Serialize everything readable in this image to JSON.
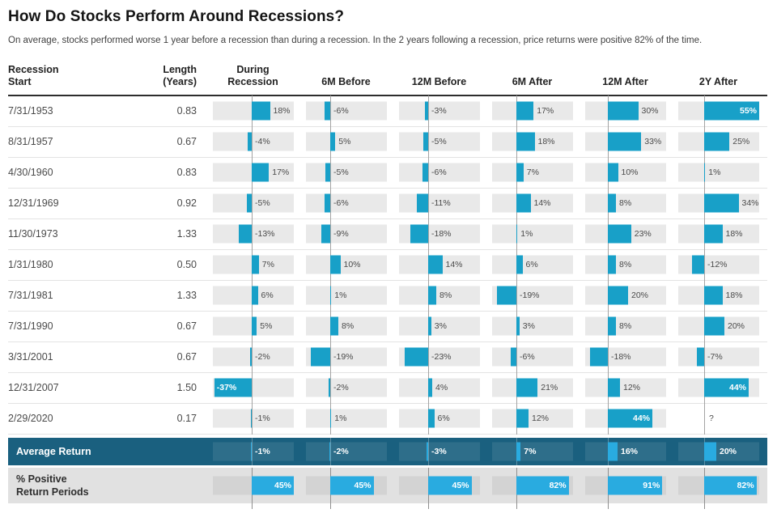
{
  "colors": {
    "bar_blue": "#18a0c8",
    "bar_bright_blue": "#29abe0",
    "dark_row_bg": "#1a607f",
    "gray_row_bg": "#e1e1e1",
    "track_gray": "#e9e9e9",
    "zero_line_gray": "#a3a3a3",
    "header_rule": "#2d2d2d"
  },
  "chart_data": {
    "type": "table",
    "title": "How Do Stocks Perform Around Recessions?",
    "subtitle": "On average, stocks performed worse 1 year before a recession than during a recession. In the 2 years following a recession, price returns were positive 82% of the time.",
    "columns": [
      "Recession\nStart",
      "Length\n(Years)",
      "During\nRecession",
      "6M Before",
      "12M Before",
      "6M After",
      "12M After",
      "2Y After"
    ],
    "bar_keys": [
      "during",
      "m6_before",
      "m12_before",
      "m6_after",
      "m12_after",
      "y2_after"
    ],
    "rows": [
      {
        "recession_start": "7/31/1953",
        "length_years": "0.83",
        "during": 18,
        "m6_before": -6,
        "m12_before": -3,
        "m6_after": 17,
        "m12_after": 30,
        "y2_after": 55
      },
      {
        "recession_start": "8/31/1957",
        "length_years": "0.67",
        "during": -4,
        "m6_before": 5,
        "m12_before": -5,
        "m6_after": 18,
        "m12_after": 33,
        "y2_after": 25
      },
      {
        "recession_start": "4/30/1960",
        "length_years": "0.83",
        "during": 17,
        "m6_before": -5,
        "m12_before": -6,
        "m6_after": 7,
        "m12_after": 10,
        "y2_after": 1
      },
      {
        "recession_start": "12/31/1969",
        "length_years": "0.92",
        "during": -5,
        "m6_before": -6,
        "m12_before": -11,
        "m6_after": 14,
        "m12_after": 8,
        "y2_after": 34
      },
      {
        "recession_start": "11/30/1973",
        "length_years": "1.33",
        "during": -13,
        "m6_before": -9,
        "m12_before": -18,
        "m6_after": 1,
        "m12_after": 23,
        "y2_after": 18
      },
      {
        "recession_start": "1/31/1980",
        "length_years": "0.50",
        "during": 7,
        "m6_before": 10,
        "m12_before": 14,
        "m6_after": 6,
        "m12_after": 8,
        "y2_after": -12
      },
      {
        "recession_start": "7/31/1981",
        "length_years": "1.33",
        "during": 6,
        "m6_before": 1,
        "m12_before": 8,
        "m6_after": -19,
        "m12_after": 20,
        "y2_after": 18
      },
      {
        "recession_start": "7/31/1990",
        "length_years": "0.67",
        "during": 5,
        "m6_before": 8,
        "m12_before": 3,
        "m6_after": 3,
        "m12_after": 8,
        "y2_after": 20
      },
      {
        "recession_start": "3/31/2001",
        "length_years": "0.67",
        "during": -2,
        "m6_before": -19,
        "m12_before": -23,
        "m6_after": -6,
        "m12_after": -18,
        "y2_after": -7
      },
      {
        "recession_start": "12/31/2007",
        "length_years": "1.50",
        "during": -37,
        "m6_before": -2,
        "m12_before": 4,
        "m6_after": 21,
        "m12_after": 12,
        "y2_after": 44
      },
      {
        "recession_start": "2/29/2020",
        "length_years": "0.17",
        "during": -1,
        "m6_before": 1,
        "m12_before": 6,
        "m6_after": 12,
        "m12_after": 44,
        "y2_after": "?"
      }
    ],
    "summary_rows": [
      {
        "label": "Average Return",
        "style": "dark",
        "during": -1,
        "m6_before": -2,
        "m12_before": -3,
        "m6_after": 7,
        "m12_after": 16,
        "y2_after": 20
      },
      {
        "label": "% Positive\nReturn Periods",
        "style": "gray",
        "during": 45,
        "m6_before": 45,
        "m12_before": 45,
        "m6_after": 82,
        "m12_after": 91,
        "y2_after": 82
      }
    ]
  }
}
